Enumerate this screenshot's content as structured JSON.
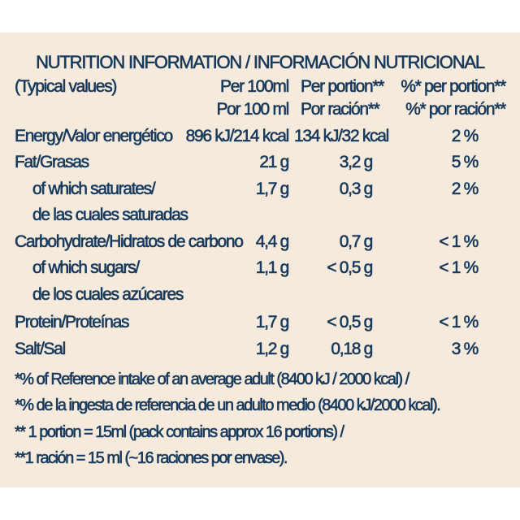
{
  "title": "NUTRITION INFORMATION / INFORMACIÓN NUTRICIONAL",
  "colors": {
    "text": "#183a5c",
    "background": "#f5eadb"
  },
  "header": {
    "label": "(Typical values)",
    "col1_en": "Per 100ml",
    "col1_es": "Por  100 ml",
    "col2_en": "Per portion**",
    "col2_es": "Por ración**",
    "col3_en": "%* per portion**",
    "col3_es": "%* por ración**"
  },
  "rows": [
    {
      "label": "Energy/Valor energético",
      "per100": "896 kJ/214 kcal",
      "portion": "134 kJ/32 kcal",
      "ri": "2 %"
    },
    {
      "label": "Fat/Grasas",
      "per100": "21 g",
      "portion": "3,2 g",
      "ri": "5 %"
    },
    {
      "label": "of which saturates/",
      "label2": "de las cuales saturadas",
      "per100": "1,7 g",
      "portion": "0,3 g",
      "ri": "2 %"
    },
    {
      "label": "Carbohydrate/Hidratos de carbono",
      "per100": "4,4 g",
      "portion": "0,7 g",
      "ri": "< 1 %"
    },
    {
      "label": "of which sugars/",
      "label2": "de los cuales azúcares",
      "per100": "1,1 g",
      "portion": "< 0,5 g",
      "ri": "< 1 %"
    },
    {
      "label": "Protein/Proteínas",
      "per100": "1,7 g",
      "portion": "< 0,5 g",
      "ri": "< 1 %"
    },
    {
      "label": "Salt/Sal",
      "per100": "1,2 g",
      "portion": "0,18 g",
      "ri": "3 %"
    }
  ],
  "footnotes": [
    "*% of Reference intake of an average adult (8400 kJ / 2000 kcal) /",
    "*% de la ingesta de referencia de un adulto medio (8400 kJ/2000 kcal).",
    "** 1 portion = 15ml (pack contains approx 16 portions) /",
    "**1 ración = 15 ml (~16 raciones por envase)."
  ]
}
